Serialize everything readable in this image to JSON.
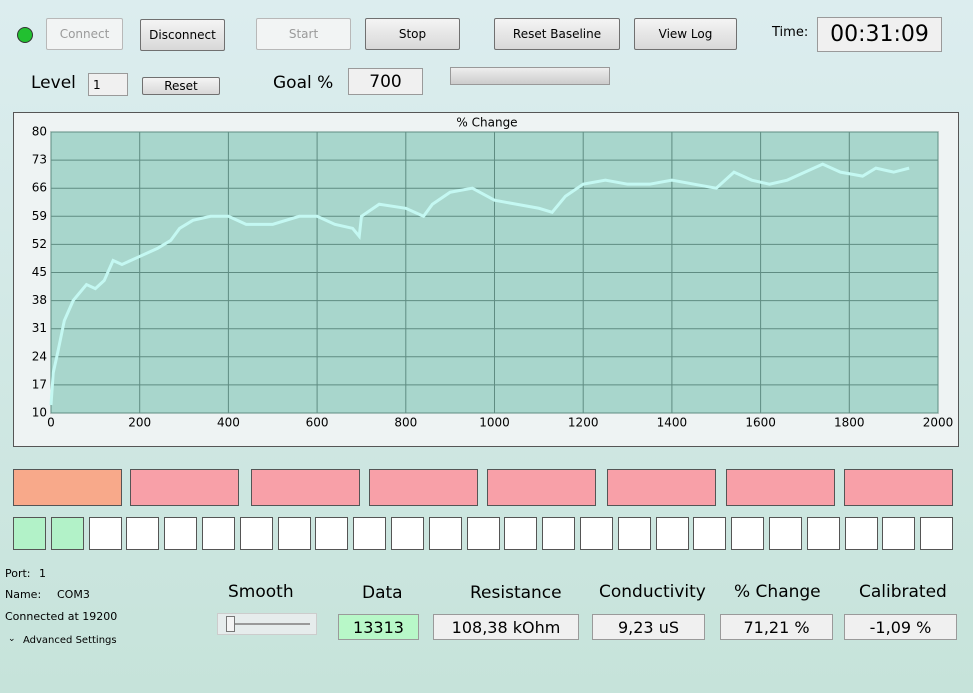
{
  "toolbar": {
    "connect": "Connect",
    "disconnect": "Disconnect",
    "start": "Start",
    "stop": "Stop",
    "reset_baseline": "Reset Baseline",
    "view_log": "View Log",
    "time_label": "Time:",
    "time": "00:31:09"
  },
  "goal": {
    "level_label": "Level",
    "level": "1",
    "reset": "Reset",
    "goal_label": "Goal %",
    "goal": "700"
  },
  "status": {
    "port_label": "Port:",
    "port": "1",
    "name_label": "Name:",
    "name": "COM3",
    "connected": "Connected at 19200",
    "advanced": "Advanced Settings"
  },
  "readouts": {
    "smooth": "Smooth",
    "data_label": "Data",
    "data": "13313",
    "resistance_label": "Resistance",
    "resistance": "108,38 kOhm",
    "conductivity_label": "Conductivity",
    "conductivity": "9,23 uS",
    "change_label": "% Change",
    "change": "71,21 %",
    "calibrated_label": "Calibrated",
    "calibrated": "-1,09 %"
  },
  "chart_data": {
    "type": "line",
    "title": "% Change",
    "color": "#c4f8f2",
    "grid": true,
    "x": [
      0,
      5,
      15,
      30,
      50,
      80,
      100,
      120,
      140,
      160,
      200,
      240,
      270,
      290,
      320,
      360,
      400,
      440,
      500,
      560,
      600,
      640,
      680,
      695,
      700,
      740,
      800,
      840,
      860,
      900,
      950,
      1000,
      1050,
      1100,
      1130,
      1160,
      1200,
      1250,
      1300,
      1350,
      1400,
      1450,
      1500,
      1540,
      1580,
      1620,
      1660,
      1700,
      1740,
      1780,
      1830,
      1860,
      1900,
      1935
    ],
    "values": [
      12,
      20,
      25,
      33,
      38,
      42,
      41,
      43,
      48,
      47,
      49,
      51,
      53,
      56,
      58,
      59,
      59,
      57,
      57,
      59,
      59,
      57,
      56,
      54,
      59,
      62,
      61,
      59,
      62,
      65,
      66,
      63,
      62,
      61,
      60,
      64,
      67,
      68,
      67,
      67,
      68,
      67,
      66,
      70,
      68,
      67,
      68,
      70,
      72,
      70,
      69,
      71,
      70,
      71
    ],
    "xlim": [
      0,
      2000
    ],
    "xticks": [
      0,
      200,
      400,
      600,
      800,
      1000,
      1200,
      1400,
      1600,
      1800,
      2000
    ],
    "ylim": [
      10,
      80
    ],
    "yticks": [
      10,
      17,
      24,
      31,
      38,
      45,
      52,
      59,
      66,
      73,
      80
    ]
  }
}
